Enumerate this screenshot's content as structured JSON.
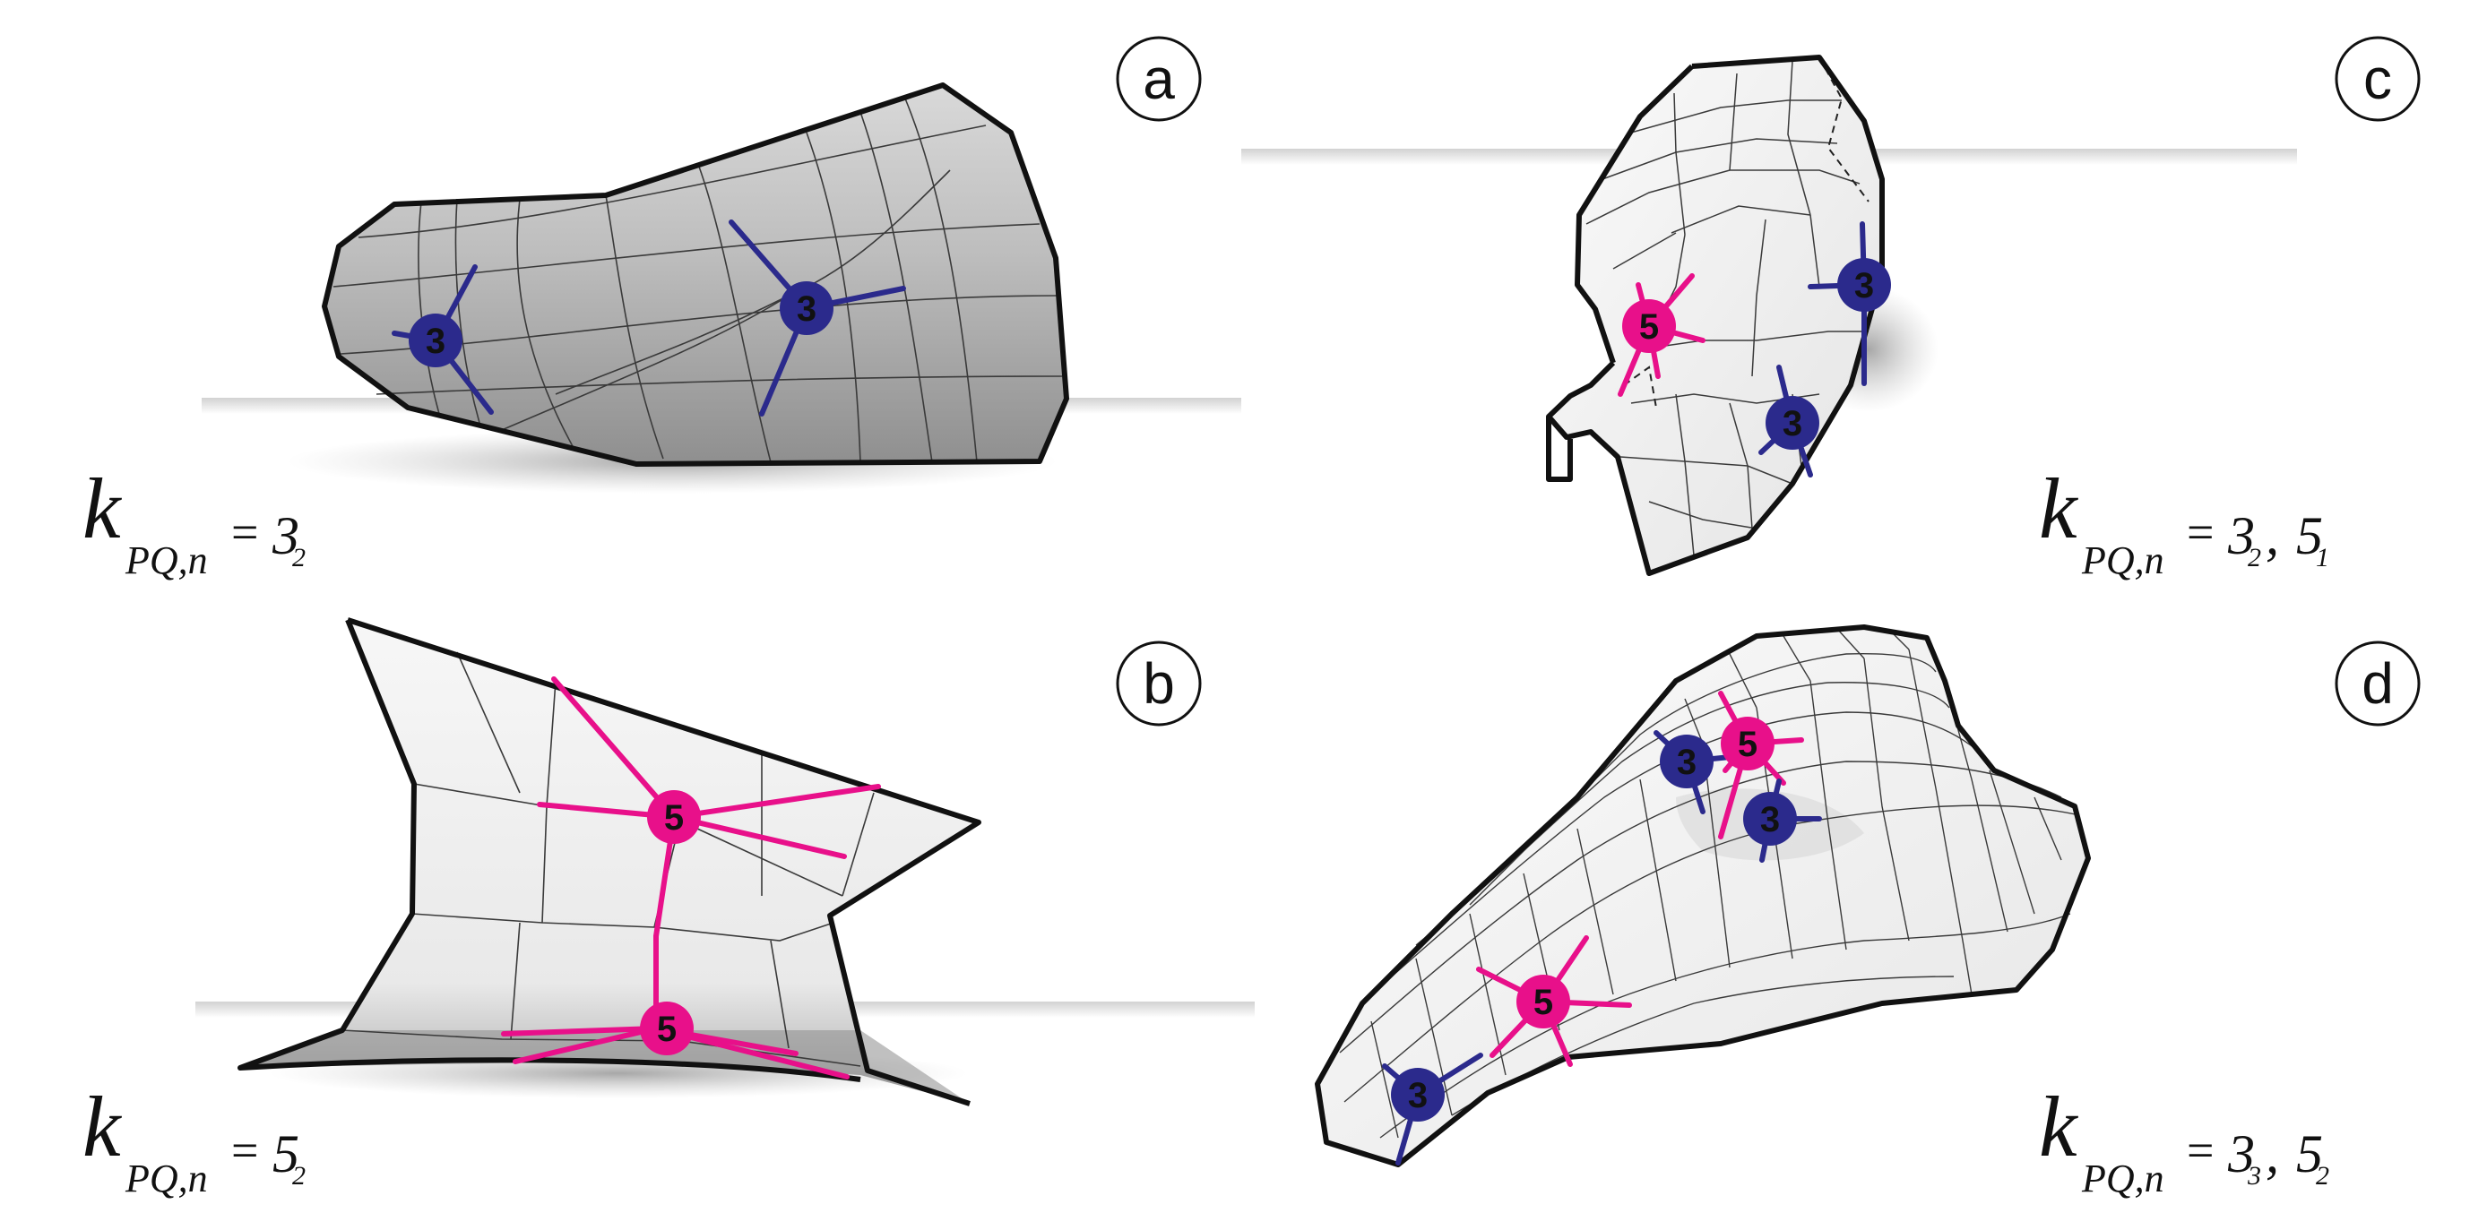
{
  "colors": {
    "blue_valence": "#2b2a8c",
    "pink_valence": "#e8108a",
    "outline": "#111111",
    "mesh_line": "#444444",
    "surface_dark": "#9e9e9e",
    "surface_light": "#f3f3f3"
  },
  "panels": [
    {
      "id": "a",
      "letter": "a",
      "formula": {
        "k": "k",
        "sub": "PQ,n",
        "eq": "=",
        "terms": [
          {
            "v": "3",
            "s": "2"
          }
        ]
      },
      "nodes": [
        {
          "label": "3",
          "type": "blue"
        },
        {
          "label": "3",
          "type": "blue"
        }
      ]
    },
    {
      "id": "b",
      "letter": "b",
      "formula": {
        "k": "k",
        "sub": "PQ,n",
        "eq": "=",
        "terms": [
          {
            "v": "5",
            "s": "2"
          }
        ]
      },
      "nodes": [
        {
          "label": "5",
          "type": "pink"
        },
        {
          "label": "5",
          "type": "pink"
        }
      ]
    },
    {
      "id": "c",
      "letter": "c",
      "formula": {
        "k": "k",
        "sub": "PQ,n",
        "eq": "=",
        "terms": [
          {
            "v": "3",
            "s": "2"
          },
          {
            "v": "5",
            "s": "1"
          }
        ]
      },
      "nodes": [
        {
          "label": "5",
          "type": "pink"
        },
        {
          "label": "3",
          "type": "blue"
        },
        {
          "label": "3",
          "type": "blue"
        }
      ]
    },
    {
      "id": "d",
      "letter": "d",
      "formula": {
        "k": "k",
        "sub": "PQ,n",
        "eq": "=",
        "terms": [
          {
            "v": "3",
            "s": "3"
          },
          {
            "v": "5",
            "s": "2"
          }
        ]
      },
      "nodes": [
        {
          "label": "3",
          "type": "blue"
        },
        {
          "label": "5",
          "type": "pink"
        },
        {
          "label": "3",
          "type": "blue"
        },
        {
          "label": "5",
          "type": "pink"
        },
        {
          "label": "3",
          "type": "blue"
        }
      ]
    }
  ]
}
